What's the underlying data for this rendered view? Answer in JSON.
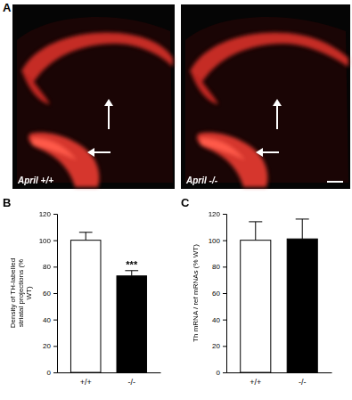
{
  "panel_a": {
    "title": "A",
    "images": [
      "April +/+",
      "April -/-"
    ]
  },
  "chart_data": [
    {
      "type": "bar",
      "title": "B",
      "y_label": "Density of TH-labelled striatal projections (% WT)",
      "categories": [
        "+/+",
        "-/-"
      ],
      "values": [
        100,
        73
      ],
      "errors": [
        6,
        4
      ],
      "colors": [
        "#ffffff",
        "#000000"
      ],
      "ylim": [
        0,
        120
      ],
      "yticks": [
        0,
        20,
        40,
        60,
        80,
        100,
        120
      ],
      "annotations": [
        {
          "text": "***",
          "category": "-/-"
        }
      ]
    },
    {
      "type": "bar",
      "title": "C",
      "y_label": "Th mRNA / ref mRNAs (% WT)",
      "categories": [
        "+/+",
        "-/-"
      ],
      "values": [
        100,
        101
      ],
      "errors": [
        14,
        15
      ],
      "colors": [
        "#ffffff",
        "#000000"
      ],
      "ylim": [
        0,
        120
      ],
      "yticks": [
        0,
        20,
        40,
        60,
        80,
        100,
        120
      ]
    }
  ]
}
